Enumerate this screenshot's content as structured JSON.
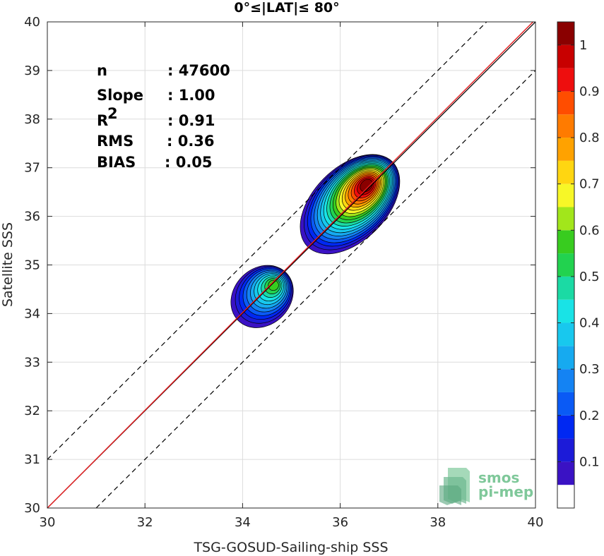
{
  "chart_data": {
    "type": "heatmap",
    "title": "0°≤|LAT|≤ 80°",
    "xlabel": "TSG-GOSUD-Sailing-ship SSS",
    "ylabel": "Satellite SSS",
    "xlim": [
      30,
      40
    ],
    "ylim": [
      30,
      40
    ],
    "xticks": [
      "30",
      "32",
      "34",
      "36",
      "38",
      "40"
    ],
    "yticks": [
      "30",
      "31",
      "32",
      "33",
      "34",
      "35",
      "36",
      "37",
      "38",
      "39",
      "40"
    ],
    "grid": true,
    "stats": [
      {
        "label": "n",
        "value": ": 47600"
      },
      {
        "label": "Slope",
        "value": ": 1.00"
      },
      {
        "label": "R",
        "sup": "2",
        "value": ": 0.91"
      },
      {
        "label": "RMS",
        "value": ": 0.36"
      },
      {
        "label": "BIAS",
        "value": ": 0.05"
      }
    ],
    "lines": {
      "one_to_one": {
        "from": [
          30,
          30
        ],
        "to": [
          40,
          40
        ],
        "color": "#000000"
      },
      "fit": {
        "from": [
          30,
          30
        ],
        "to": [
          40,
          40.05
        ],
        "color": "#e41a1c"
      },
      "upper_band": {
        "from": [
          30,
          31
        ],
        "to": [
          39,
          40
        ],
        "color": "#000000",
        "style": "dashed"
      },
      "lower_band": {
        "from": [
          31,
          30
        ],
        "to": [
          40,
          39
        ],
        "color": "#000000",
        "style": "dashed"
      }
    },
    "density_clusters": [
      {
        "center": [
          36.2,
          36.25
        ],
        "peak": [
          36.55,
          36.65
        ],
        "peak_density": 1.0
      },
      {
        "center": [
          34.4,
          34.35
        ],
        "peak": [
          34.65,
          34.6
        ],
        "peak_density": 0.55
      }
    ],
    "colorbar": {
      "levels": [
        0.05,
        0.1,
        0.15,
        0.2,
        0.25,
        0.3,
        0.35,
        0.4,
        0.45,
        0.5,
        0.55,
        0.6,
        0.65,
        0.7,
        0.75,
        0.8,
        0.85,
        0.9,
        0.95,
        1.0
      ],
      "colors": [
        "#ffffff",
        "#5a0ea8",
        "#3a12c4",
        "#1c1bd8",
        "#0028f2",
        "#0a5af5",
        "#1483f3",
        "#16aaf0",
        "#18c8ee",
        "#19e3e6",
        "#1bdaa4",
        "#22d24f",
        "#38cc1f",
        "#a2e61b",
        "#f7f727",
        "#ffd611",
        "#ffa200",
        "#ff7b00",
        "#ff4d00",
        "#ee0e0e",
        "#c80000",
        "#8a0000"
      ],
      "ticks": [
        "0.1",
        "0.2",
        "0.3",
        "0.4",
        "0.5",
        "0.6",
        "0.7",
        "0.8",
        "0.9",
        "1"
      ]
    },
    "logo": {
      "line1": "smos",
      "line2": "pi-mep"
    }
  }
}
